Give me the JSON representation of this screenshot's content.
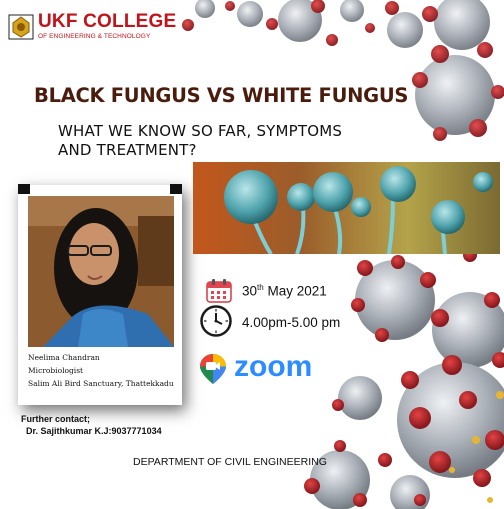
{
  "header": {
    "college_name": "UKF COLLEGE",
    "college_subtitle": "OF ENGINEERING & TECHNOLOGY"
  },
  "event": {
    "title": "BLACK FUNGUS VS WHITE FUNGUS",
    "subtitle_line1": "WHAT WE KNOW SO FAR, SYMPTOMS",
    "subtitle_line2": "AND TREATMENT?",
    "date_day": "30",
    "date_suffix": "th",
    "date_rest": " May 2021",
    "time": "4.00pm-5.00 pm",
    "platform": "zoom"
  },
  "speaker": {
    "name": "Neelima Chandran",
    "role": "Microbiologist",
    "affiliation": "Salim Ali Bird Sanctuary, Thattekkadu"
  },
  "contact": {
    "label": "Further contact;",
    "person": "Dr. Sajithkumar K.J:9037771034"
  },
  "footer": {
    "department": "DEPARTMENT OF CIVIL ENGINEERING"
  },
  "colors": {
    "brand_red": "#c0131a",
    "title_brown": "#4a1c0d",
    "zoom_blue": "#2d8cff",
    "virus_red": "#b5121b",
    "virus_grey": "#9aa0a8"
  },
  "icons": [
    "college-logo-icon",
    "calendar-icon",
    "clock-icon",
    "zoom-camera-icon"
  ]
}
